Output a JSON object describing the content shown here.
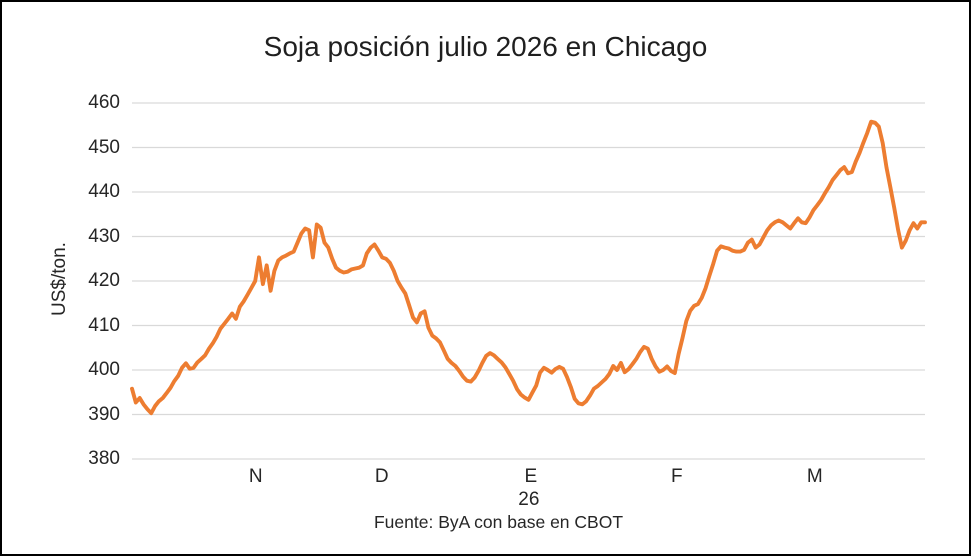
{
  "window": {
    "background": "#ffffff",
    "border_color": "#000000"
  },
  "chart_data": {
    "type": "line",
    "title": "Soja posición julio 2026 en Chicago",
    "ylabel": "US$/ton.",
    "source": "Fuente: ByA con base en CBOT",
    "ylim": [
      380,
      460
    ],
    "y_ticks": [
      460,
      450,
      440,
      430,
      420,
      410,
      400,
      390,
      380
    ],
    "x_ticks": [
      {
        "label": "N",
        "pos": 0.156
      },
      {
        "label": "D",
        "pos": 0.315
      },
      {
        "label": "E",
        "pos": 0.503,
        "sublabel": "26"
      },
      {
        "label": "F",
        "pos": 0.687
      },
      {
        "label": "M",
        "pos": 0.861
      }
    ],
    "grid": true,
    "grid_color": "#D9D9D9",
    "legend_position": "none",
    "series": [
      {
        "color": "#ED7D31",
        "values": [
          395.8,
          392.7,
          393.7,
          392.3,
          391.2,
          390.3,
          391.9,
          393.0,
          393.7,
          394.8,
          396.0,
          397.5,
          398.7,
          400.5,
          401.5,
          400.3,
          400.5,
          401.7,
          402.5,
          403.3,
          404.8,
          406.0,
          407.5,
          409.3,
          410.4,
          411.5,
          412.7,
          411.5,
          414.2,
          415.4,
          416.9,
          418.4,
          420.0,
          425.3,
          419.3,
          423.5,
          417.8,
          422.3,
          424.6,
          425.3,
          425.7,
          426.2,
          426.6,
          428.6,
          430.7,
          431.8,
          431.4,
          425.3,
          432.7,
          432.0,
          428.6,
          427.5,
          425.0,
          423.0,
          422.3,
          421.9,
          422.1,
          422.6,
          422.8,
          423.0,
          423.5,
          426.2,
          427.5,
          428.2,
          426.8,
          425.3,
          425.0,
          424.1,
          422.3,
          420.0,
          418.5,
          417.2,
          414.5,
          411.8,
          410.7,
          412.7,
          413.2,
          409.5,
          407.7,
          407.1,
          406.2,
          404.4,
          402.5,
          401.6,
          400.9,
          399.8,
          398.5,
          397.6,
          397.4,
          398.3,
          399.8,
          401.6,
          403.2,
          403.8,
          403.3,
          402.5,
          401.7,
          400.6,
          399.1,
          397.6,
          395.7,
          394.5,
          393.8,
          393.3,
          394.9,
          396.5,
          399.4,
          400.5,
          400.0,
          399.4,
          400.2,
          400.7,
          400.3,
          398.4,
          396.2,
          393.5,
          392.5,
          392.3,
          393.0,
          394.3,
          395.8,
          396.4,
          397.2,
          398.0,
          399.1,
          400.9,
          400.0,
          401.6,
          399.5,
          400.2,
          401.3,
          402.5,
          404.0,
          405.2,
          404.8,
          402.5,
          400.8,
          399.6,
          400.0,
          400.8,
          399.8,
          399.3,
          403.6,
          407.2,
          411.0,
          413.3,
          414.4,
          414.8,
          416.2,
          418.4,
          421.2,
          423.9,
          426.8,
          427.8,
          427.5,
          427.3,
          426.8,
          426.6,
          426.6,
          427.0,
          428.6,
          429.3,
          427.5,
          428.2,
          429.8,
          431.4,
          432.5,
          433.2,
          433.6,
          433.2,
          432.5,
          431.8,
          433.0,
          434.1,
          433.2,
          433.0,
          434.3,
          435.9,
          437.0,
          438.2,
          439.7,
          441.1,
          442.7,
          443.8,
          444.9,
          445.6,
          444.2,
          444.5,
          446.8,
          448.8,
          451.1,
          453.3,
          455.8,
          455.6,
          454.7,
          451.0,
          445.5,
          441.0,
          436.5,
          431.5,
          427.5,
          429.1,
          431.4,
          433.0,
          431.8,
          433.2,
          433.2
        ]
      }
    ]
  }
}
